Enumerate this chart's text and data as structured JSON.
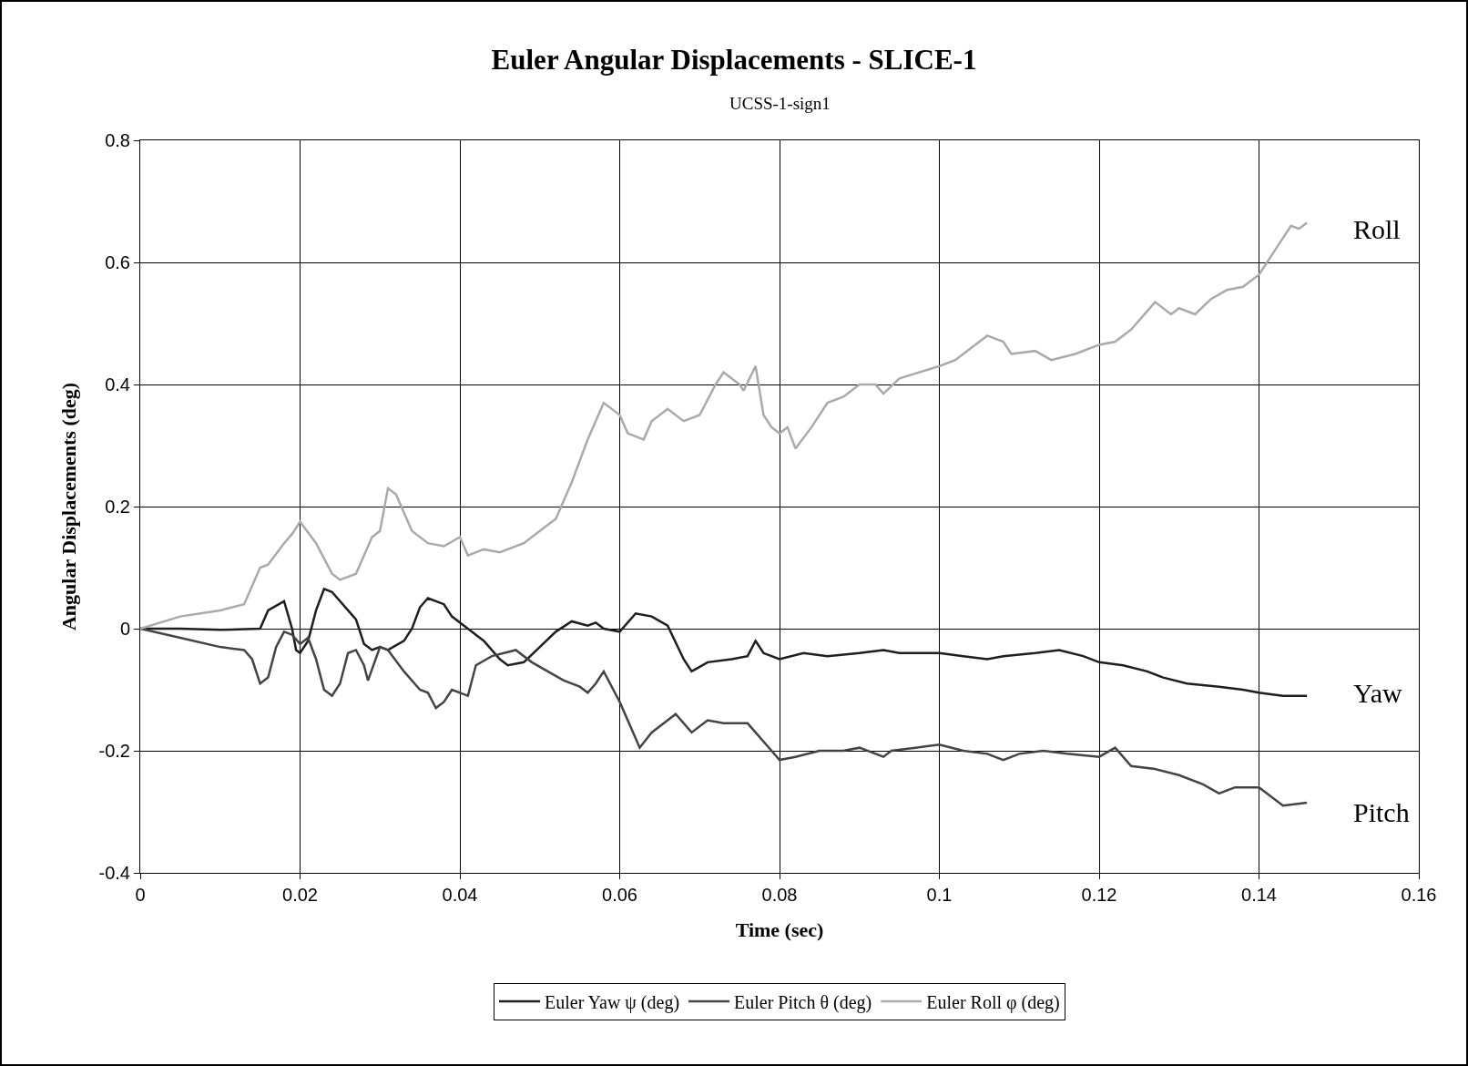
{
  "chart_data": {
    "type": "line",
    "title": "Euler Angular Displacements - SLICE-1",
    "subtitle": "UCSS-1-sign1",
    "xlabel": "Time (sec)",
    "ylabel": "Angular Displacements (deg)",
    "xlim": [
      0,
      0.16
    ],
    "xticks": [
      0,
      0.02,
      0.04,
      0.06,
      0.08,
      0.1,
      0.12,
      0.14,
      0.16
    ],
    "ylim": [
      -0.4,
      0.8
    ],
    "yticks": [
      -0.4,
      -0.2,
      0,
      0.2,
      0.4,
      0.6,
      0.8
    ],
    "grid": true,
    "legend": "bottom",
    "marker": "none",
    "line_style": "solid",
    "series": [
      {
        "name": "Euler Yaw ψ (deg)",
        "color": "#1e1e1e",
        "x": [
          0,
          0.005,
          0.01,
          0.015,
          0.016,
          0.018,
          0.019,
          0.0195,
          0.02,
          0.021,
          0.022,
          0.023,
          0.024,
          0.026,
          0.027,
          0.028,
          0.029,
          0.03,
          0.031,
          0.033,
          0.034,
          0.035,
          0.036,
          0.038,
          0.039,
          0.041,
          0.043,
          0.045,
          0.046,
          0.048,
          0.05,
          0.052,
          0.054,
          0.056,
          0.057,
          0.058,
          0.06,
          0.062,
          0.064,
          0.066,
          0.068,
          0.069,
          0.071,
          0.074,
          0.076,
          0.077,
          0.078,
          0.08,
          0.083,
          0.086,
          0.09,
          0.093,
          0.095,
          0.1,
          0.103,
          0.106,
          0.108,
          0.112,
          0.115,
          0.118,
          0.12,
          0.123,
          0.126,
          0.128,
          0.131,
          0.135,
          0.138,
          0.14,
          0.143,
          0.146
        ],
        "values": [
          0,
          0,
          -0.002,
          0,
          0.03,
          0.045,
          0,
          -0.035,
          -0.04,
          -0.02,
          0.03,
          0.065,
          0.06,
          0.03,
          0.015,
          -0.025,
          -0.035,
          -0.03,
          -0.035,
          -0.02,
          0,
          0.035,
          0.05,
          0.04,
          0.02,
          0,
          -0.02,
          -0.05,
          -0.06,
          -0.055,
          -0.03,
          -0.005,
          0.012,
          0.005,
          0.01,
          0,
          -0.005,
          0.025,
          0.02,
          0.005,
          -0.05,
          -0.07,
          -0.055,
          -0.05,
          -0.045,
          -0.02,
          -0.04,
          -0.05,
          -0.04,
          -0.045,
          -0.04,
          -0.035,
          -0.04,
          -0.04,
          -0.045,
          -0.05,
          -0.045,
          -0.04,
          -0.035,
          -0.045,
          -0.055,
          -0.06,
          -0.07,
          -0.08,
          -0.09,
          -0.095,
          -0.1,
          -0.105,
          -0.11,
          -0.11
        ]
      },
      {
        "name": "Euler Pitch θ (deg)",
        "color": "#444444",
        "x": [
          0,
          0.005,
          0.01,
          0.013,
          0.014,
          0.015,
          0.016,
          0.017,
          0.018,
          0.019,
          0.02,
          0.021,
          0.022,
          0.023,
          0.024,
          0.025,
          0.026,
          0.027,
          0.028,
          0.0285,
          0.03,
          0.031,
          0.033,
          0.035,
          0.036,
          0.037,
          0.038,
          0.039,
          0.04,
          0.041,
          0.042,
          0.044,
          0.047,
          0.049,
          0.051,
          0.053,
          0.055,
          0.056,
          0.057,
          0.058,
          0.06,
          0.062,
          0.0625,
          0.064,
          0.066,
          0.067,
          0.069,
          0.071,
          0.073,
          0.076,
          0.077,
          0.079,
          0.08,
          0.082,
          0.085,
          0.088,
          0.09,
          0.093,
          0.094,
          0.097,
          0.1,
          0.103,
          0.106,
          0.108,
          0.11,
          0.113,
          0.116,
          0.12,
          0.122,
          0.124,
          0.127,
          0.13,
          0.133,
          0.135,
          0.137,
          0.14,
          0.143,
          0.146
        ],
        "values": [
          0,
          -0.015,
          -0.03,
          -0.035,
          -0.05,
          -0.09,
          -0.08,
          -0.03,
          -0.005,
          -0.01,
          -0.025,
          -0.015,
          -0.05,
          -0.1,
          -0.11,
          -0.09,
          -0.04,
          -0.035,
          -0.06,
          -0.085,
          -0.03,
          -0.035,
          -0.07,
          -0.1,
          -0.105,
          -0.13,
          -0.12,
          -0.1,
          -0.105,
          -0.11,
          -0.06,
          -0.045,
          -0.035,
          -0.055,
          -0.07,
          -0.085,
          -0.095,
          -0.105,
          -0.09,
          -0.07,
          -0.12,
          -0.18,
          -0.195,
          -0.17,
          -0.15,
          -0.14,
          -0.17,
          -0.15,
          -0.155,
          -0.155,
          -0.17,
          -0.2,
          -0.215,
          -0.21,
          -0.2,
          -0.2,
          -0.195,
          -0.21,
          -0.2,
          -0.195,
          -0.19,
          -0.2,
          -0.205,
          -0.215,
          -0.205,
          -0.2,
          -0.205,
          -0.21,
          -0.195,
          -0.225,
          -0.23,
          -0.24,
          -0.255,
          -0.27,
          -0.26,
          -0.26,
          -0.29,
          -0.285
        ]
      },
      {
        "name": "Euler Roll φ (deg)",
        "color": "#aaaaaa",
        "x": [
          0,
          0.005,
          0.01,
          0.013,
          0.015,
          0.016,
          0.018,
          0.019,
          0.02,
          0.022,
          0.024,
          0.025,
          0.027,
          0.029,
          0.03,
          0.031,
          0.032,
          0.034,
          0.036,
          0.038,
          0.04,
          0.041,
          0.043,
          0.045,
          0.048,
          0.05,
          0.052,
          0.054,
          0.056,
          0.058,
          0.06,
          0.061,
          0.063,
          0.064,
          0.066,
          0.068,
          0.069,
          0.07,
          0.072,
          0.073,
          0.075,
          0.0755,
          0.077,
          0.078,
          0.079,
          0.08,
          0.081,
          0.082,
          0.084,
          0.086,
          0.088,
          0.09,
          0.092,
          0.093,
          0.095,
          0.1,
          0.102,
          0.104,
          0.106,
          0.108,
          0.109,
          0.112,
          0.114,
          0.117,
          0.12,
          0.122,
          0.124,
          0.126,
          0.127,
          0.129,
          0.13,
          0.132,
          0.134,
          0.136,
          0.138,
          0.14,
          0.142,
          0.144,
          0.145,
          0.146
        ],
        "values": [
          0,
          0.02,
          0.03,
          0.04,
          0.1,
          0.105,
          0.14,
          0.155,
          0.175,
          0.14,
          0.09,
          0.08,
          0.09,
          0.15,
          0.16,
          0.23,
          0.22,
          0.16,
          0.14,
          0.135,
          0.15,
          0.12,
          0.13,
          0.125,
          0.14,
          0.16,
          0.18,
          0.24,
          0.31,
          0.37,
          0.35,
          0.32,
          0.31,
          0.34,
          0.36,
          0.34,
          0.345,
          0.35,
          0.4,
          0.42,
          0.4,
          0.39,
          0.43,
          0.35,
          0.33,
          0.32,
          0.33,
          0.295,
          0.33,
          0.37,
          0.38,
          0.4,
          0.4,
          0.385,
          0.41,
          0.43,
          0.44,
          0.46,
          0.48,
          0.47,
          0.45,
          0.455,
          0.44,
          0.45,
          0.465,
          0.47,
          0.49,
          0.52,
          0.535,
          0.515,
          0.525,
          0.515,
          0.54,
          0.555,
          0.56,
          0.58,
          0.62,
          0.66,
          0.655,
          0.665
        ]
      }
    ],
    "annotations": [
      "Roll",
      "Yaw",
      "Pitch"
    ]
  }
}
